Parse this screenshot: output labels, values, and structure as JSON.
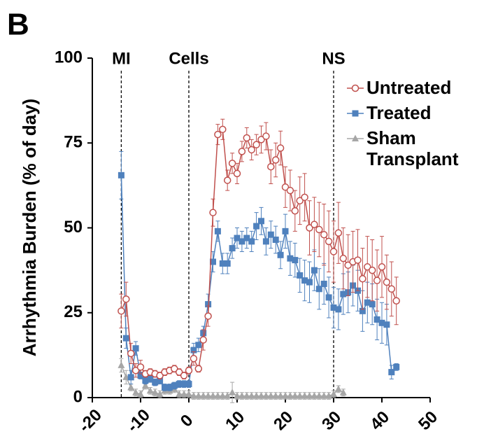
{
  "chart_data": {
    "type": "line",
    "panel_label": "B",
    "ylabel": "Arrhythmia Burden (% of day)",
    "xlim": [
      -20,
      50
    ],
    "xticks": [
      -20,
      -10,
      0,
      10,
      20,
      30,
      40,
      50
    ],
    "ylim": [
      0,
      100
    ],
    "yticks": [
      0,
      25,
      50,
      75,
      100
    ],
    "legend": "top-right",
    "annotations": [
      {
        "text": "MI",
        "x": -14
      },
      {
        "text": "Cells",
        "x": 0
      },
      {
        "text": "NS",
        "x": 30
      }
    ],
    "x": [
      -14,
      -13,
      -12,
      -11,
      -10,
      -9,
      -8,
      -7,
      -6,
      -5,
      -4,
      -3,
      -2,
      -1,
      0,
      1,
      2,
      3,
      4,
      5,
      6,
      7,
      8,
      9,
      10,
      11,
      12,
      13,
      14,
      15,
      16,
      17,
      18,
      19,
      20,
      21,
      22,
      23,
      24,
      25,
      26,
      27,
      28,
      29,
      30,
      31,
      32,
      33,
      34,
      35,
      36,
      37,
      38,
      39,
      40,
      41,
      42,
      43
    ],
    "series": [
      {
        "name": "Untreated",
        "color": "#c0504d",
        "marker": "circle",
        "values": [
          25.5,
          29,
          13,
          8,
          9,
          7,
          7.5,
          7,
          6.5,
          7.5,
          8,
          8.5,
          7.5,
          6.5,
          8,
          11.5,
          8.5,
          17,
          24,
          54.5,
          77.5,
          79,
          64,
          69,
          66,
          72.5,
          76.5,
          73,
          74.5,
          76,
          77,
          68,
          70,
          73.5,
          62,
          61,
          55,
          58,
          59,
          50,
          51,
          49.5,
          48,
          46,
          43,
          48.5,
          41,
          39,
          40,
          40.5,
          35,
          38.5,
          37.5,
          34.5,
          38.5,
          34,
          32,
          28.5
        ],
        "errors": [
          5,
          5,
          3,
          2,
          2,
          1,
          1,
          1,
          1,
          1,
          1,
          1,
          1,
          1,
          1,
          2,
          1,
          3,
          3,
          4,
          3,
          3,
          3,
          3,
          3,
          3,
          3,
          3,
          3,
          4,
          4,
          5,
          5,
          5,
          6,
          6,
          6,
          7,
          7,
          8,
          8,
          8,
          9,
          9,
          9,
          9,
          9,
          9,
          9,
          9,
          9,
          9,
          9,
          9,
          9,
          8,
          8,
          7
        ]
      },
      {
        "name": "Treated",
        "color": "#4f81bd",
        "marker": "square",
        "values": [
          65.5,
          17.5,
          6,
          14.5,
          6.5,
          5,
          5.5,
          4.5,
          5,
          3,
          3,
          3.5,
          4,
          4,
          4,
          14,
          15.5,
          19,
          27.5,
          40,
          49,
          39.5,
          39.5,
          44,
          47,
          46,
          47,
          46,
          50.5,
          52,
          46,
          48,
          46.5,
          42,
          49,
          41,
          40.5,
          36,
          34.5,
          34,
          37.5,
          32,
          33.5,
          29.5,
          26.5,
          26,
          30.5,
          31,
          33,
          31.5,
          25.5,
          28,
          27.5,
          23,
          22,
          21.5,
          7.5,
          9
        ],
        "errors": [
          7,
          3,
          2,
          2,
          1,
          1,
          1,
          1,
          1,
          1,
          1,
          1,
          1,
          1,
          1,
          2,
          2,
          2,
          3,
          3,
          3,
          3,
          3,
          3,
          3,
          3,
          3,
          3,
          4,
          4,
          4,
          4,
          4,
          4,
          5,
          5,
          5,
          5,
          6,
          6,
          6,
          6,
          6,
          6,
          6,
          6,
          6,
          6,
          6,
          6,
          6,
          6,
          6,
          6,
          6,
          6,
          2,
          1
        ]
      },
      {
        "name": "Sham Transplant",
        "color": "#a6a6a6",
        "marker": "triangle",
        "values": [
          9.5,
          6,
          3,
          1.5,
          1,
          3.5,
          2,
          1.5,
          1,
          2,
          2,
          2.5,
          1,
          1,
          1,
          0.5,
          0.5,
          0.5,
          0.5,
          0.5,
          0.5,
          0.5,
          0.5,
          1.5,
          0.5,
          0.5,
          0.5,
          0.5,
          0.5,
          0.5,
          0.5,
          0.5,
          0.5,
          0.5,
          0.5,
          0.5,
          0.5,
          0.5,
          0.5,
          0.5,
          0.5,
          0.5,
          0.5,
          0.5,
          1,
          2.5,
          1.5,
          null,
          null,
          null,
          null,
          null,
          null,
          null,
          null,
          null,
          null,
          null
        ],
        "errors": [
          2,
          2,
          1,
          1,
          1,
          1,
          1,
          1,
          1,
          1,
          1,
          1,
          1,
          1,
          1,
          1,
          1,
          1,
          1,
          1,
          1,
          1,
          1,
          3,
          1,
          1,
          1,
          1,
          1,
          1,
          1,
          1,
          1,
          1,
          1,
          1,
          1,
          1,
          1,
          1,
          1,
          1,
          1,
          1,
          1,
          1,
          1,
          null,
          null,
          null,
          null,
          null,
          null,
          null,
          null,
          null,
          null,
          null
        ]
      }
    ]
  }
}
